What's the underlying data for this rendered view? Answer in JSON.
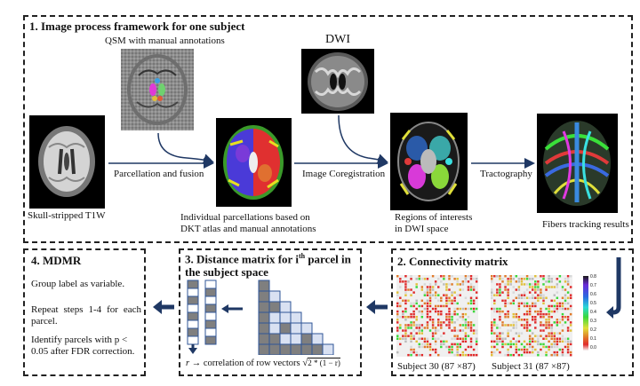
{
  "panel1": {
    "title": "1. Image process framework for one subject",
    "qsm_caption": "QSM with manual annotations",
    "dwi_caption": "DWI",
    "t1_caption": "Skull-stripped T1W",
    "arrow1_label": "Parcellation and fusion",
    "arrow2_label": "Image Coregistration",
    "arrow3_label": "Tractography",
    "parcel_caption_line1": "Individual parcellations based on",
    "parcel_caption_line2": "DKT atlas and manual annotations",
    "roi_caption_line1": "Regions of interests",
    "roi_caption_line2": "in DWI space",
    "fibers_caption": "Fibers tracking results"
  },
  "panel2": {
    "title": "2. Connectivity matrix",
    "subject30": "Subject 30 (87 ×87)",
    "subject31": "Subject 31 (87 ×87)",
    "colorbar_ticks": [
      "0.8",
      "0.7",
      "0.6",
      "0.5",
      "0.4",
      "0.3",
      "0.2",
      "0.1",
      "0.0"
    ]
  },
  "panel3": {
    "title_line1": "3. Distance matrix for i",
    "title_sup": "th",
    "title_line1_end": " parcel in",
    "title_line2": "the subject space",
    "formula_r": "r",
    "formula_text": "→ correlation of row vectors",
    "formula_sqrt": "2 * (1 − r)"
  },
  "panel4": {
    "title": "4. MDMR",
    "line1": "Group label as variable.",
    "line2": "Repeat steps 1-4 for each parcel.",
    "line3": "Identify parcels with p < 0.05 after FDR correction."
  },
  "colors": {
    "arrow": "#1f3864",
    "dashed_border": "#222222",
    "cell_dark": "#7f7f7f",
    "cell_light": "#d9e1f2",
    "cell_border": "#2f5597"
  }
}
